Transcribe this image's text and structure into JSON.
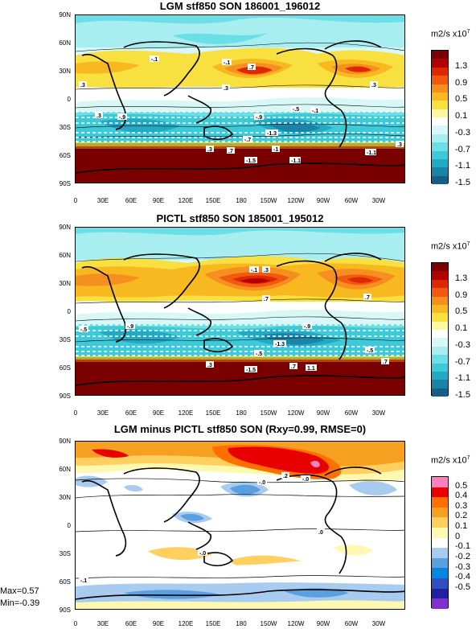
{
  "panels": [
    {
      "title": "LGM stf850 SON 186001_196012",
      "units": "m2/s x10",
      "units_exp": "7",
      "lat_ticks": [
        "90N",
        "60N",
        "30N",
        "0",
        "30S",
        "60S",
        "90S"
      ],
      "lon_ticks": [
        "0",
        "30E",
        "60E",
        "90E",
        "120E",
        "150E",
        "180",
        "150W",
        "120W",
        "90W",
        "60W",
        "30W"
      ],
      "levels": [
        "1.3",
        "0.9",
        "0.5",
        "0.1",
        "-0.3",
        "-0.7",
        "-1.1",
        "-1.5"
      ],
      "colors": [
        "#7a0000",
        "#b00000",
        "#e02800",
        "#f25a10",
        "#f59020",
        "#f7b820",
        "#f8e040",
        "#fff8a0",
        "#ffffff",
        "#d8f8f8",
        "#a8eef0",
        "#6cdfe6",
        "#3ec9d8",
        "#22aac4",
        "#1a84a8",
        "#155f85"
      ],
      "contour_labels": [
        "-.1",
        ".3",
        "-.1",
        ".3",
        "-.5",
        "-.9",
        "-.9",
        "-1.3",
        ".3",
        ".7",
        "-1",
        "-.1",
        "-1.1",
        ".3",
        "-1.5",
        "-1.1",
        ".3",
        "-.7",
        ".7",
        ".3"
      ]
    },
    {
      "title": "PICTL stf850 SON 185001_195012",
      "units": "m2/s x10",
      "units_exp": "7",
      "lat_ticks": [
        "90N",
        "60N",
        "30N",
        "0",
        "30S",
        "60S",
        "90S"
      ],
      "lon_ticks": [
        "0",
        "30E",
        "60E",
        "90E",
        "120E",
        "150E",
        "180",
        "150W",
        "120W",
        "90W",
        "60W",
        "30W"
      ],
      "levels": [
        "1.3",
        "0.9",
        "0.5",
        "0.1",
        "-0.3",
        "-0.7",
        "-1.1",
        "-1.5"
      ],
      "colors": [
        "#7a0000",
        "#b00000",
        "#e02800",
        "#f25a10",
        "#f59020",
        "#f7b820",
        "#f8e040",
        "#fff8a0",
        "#ffffff",
        "#d8f8f8",
        "#a8eef0",
        "#6cdfe6",
        "#3ec9d8",
        "#22aac4",
        "#1a84a8",
        "#155f85"
      ],
      "contour_labels": [
        "-.1",
        ".3",
        ".7",
        "-.5",
        "-.9",
        "-.9",
        "-1.3",
        "-.5",
        ".7",
        "1.1",
        "-1.5",
        ".7",
        ".3",
        "-.5",
        ".7"
      ]
    },
    {
      "title": "LGM minus PICTL stf850 SON (Rxy=0.99, RMSE=0)",
      "units": "m2/s x10",
      "units_exp": "7",
      "lat_ticks": [
        "90N",
        "60N",
        "30N",
        "0",
        "30S",
        "60S",
        "90S"
      ],
      "lon_ticks": [
        "0",
        "30E",
        "60E",
        "90E",
        "120E",
        "150E",
        "180",
        "150W",
        "120W",
        "90W",
        "60W",
        "30W"
      ],
      "levels": [
        "0.5",
        "0.4",
        "0.3",
        "0.2",
        "0.1",
        "0",
        "-0.1",
        "-0.2",
        "-0.3",
        "-0.4",
        "-0.5"
      ],
      "colors": [
        "#ff80c0",
        "#e80000",
        "#ff7000",
        "#f5a020",
        "#ffd060",
        "#fff8b0",
        "#ffffff",
        "#a8ccf0",
        "#5aa0e0",
        "#0088e0",
        "#3050c0",
        "#2020a0",
        "#8030d0"
      ],
      "contour_labels": [
        ".2",
        "-.0",
        "-.0",
        "-.0",
        ".0",
        "-.1"
      ],
      "max": "Max=0.57",
      "min": "Min=-0.39"
    }
  ],
  "chart_data": [
    {
      "type": "heatmap",
      "title": "LGM stf850 SON 186001_196012",
      "colorbar_label": "m2/s x10^7",
      "colorbar_ticks": [
        1.3,
        0.9,
        0.5,
        0.1,
        -0.3,
        -0.7,
        -1.1,
        -1.5
      ],
      "y_ticks": [
        "90N",
        "60N",
        "30N",
        "0",
        "30S",
        "60S",
        "90S"
      ],
      "x_ticks": [
        "0",
        "30E",
        "60E",
        "90E",
        "120E",
        "150E",
        "180",
        "150W",
        "120W",
        "90W",
        "60W",
        "30W"
      ],
      "contour_labels": [
        -0.1,
        0.3,
        0.7,
        -0.5,
        -0.9,
        -1.3,
        -1.0,
        -1.1,
        -1.5,
        -0.7
      ]
    },
    {
      "type": "heatmap",
      "title": "PICTL stf850 SON 185001_195012",
      "colorbar_label": "m2/s x10^7",
      "colorbar_ticks": [
        1.3,
        0.9,
        0.5,
        0.1,
        -0.3,
        -0.7,
        -1.1,
        -1.5
      ],
      "y_ticks": [
        "90N",
        "60N",
        "30N",
        "0",
        "30S",
        "60S",
        "90S"
      ],
      "x_ticks": [
        "0",
        "30E",
        "60E",
        "90E",
        "120E",
        "150E",
        "180",
        "150W",
        "120W",
        "90W",
        "60W",
        "30W"
      ],
      "contour_labels": [
        -0.1,
        0.3,
        0.7,
        -0.5,
        -0.9,
        -1.3,
        1.1,
        -1.5
      ]
    },
    {
      "type": "heatmap",
      "title": "LGM minus PICTL stf850 SON (Rxy=0.99, RMSE=0)",
      "colorbar_label": "m2/s x10^7",
      "colorbar_ticks": [
        0.5,
        0.4,
        0.3,
        0.2,
        0.1,
        0,
        -0.1,
        -0.2,
        -0.3,
        -0.4,
        -0.5
      ],
      "y_ticks": [
        "90N",
        "60N",
        "30N",
        "0",
        "30S",
        "60S",
        "90S"
      ],
      "x_ticks": [
        "0",
        "30E",
        "60E",
        "90E",
        "120E",
        "150E",
        "180",
        "150W",
        "120W",
        "90W",
        "60W",
        "30W"
      ],
      "max": 0.57,
      "min": -0.39
    }
  ]
}
